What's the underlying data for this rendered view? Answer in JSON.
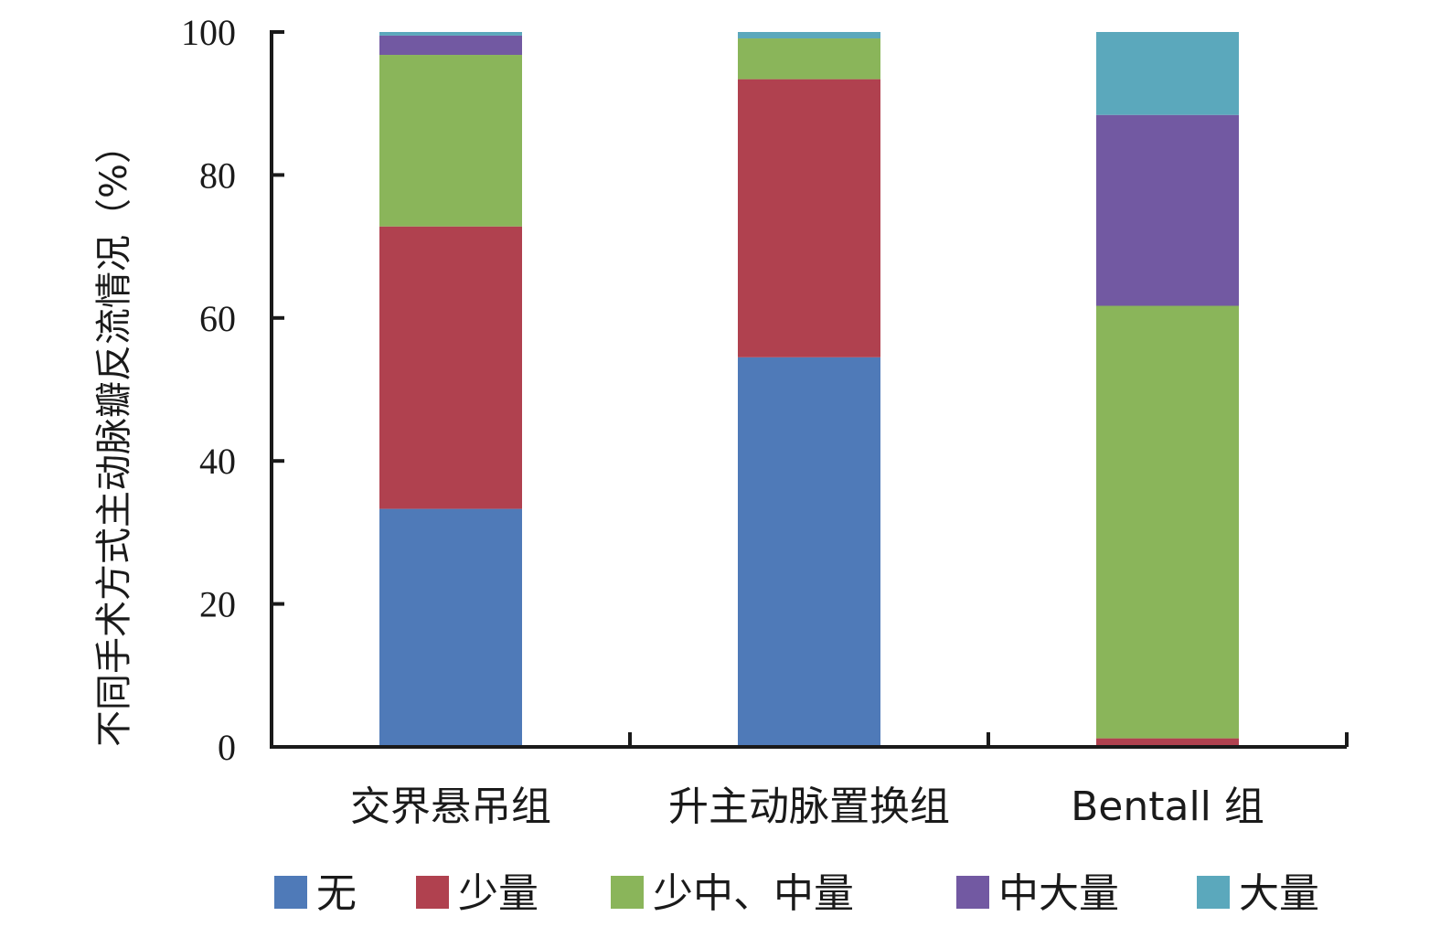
{
  "chart_data": {
    "type": "bar",
    "stacked": true,
    "title": "",
    "xlabel": "",
    "ylabel": "不同手术方式主动脉瓣反流情况（%）",
    "ylim": [
      0,
      100
    ],
    "yticks": [
      0,
      20,
      40,
      60,
      80,
      100
    ],
    "categories": [
      "交界悬吊组",
      "升主动脉置换组",
      "Bentall 组"
    ],
    "series": [
      {
        "name": "无",
        "color": "#4F7AB8",
        "values": [
          33.3,
          54.5,
          0
        ]
      },
      {
        "name": "少量",
        "color": "#B0414F",
        "values": [
          39.5,
          38.9,
          1.2
        ]
      },
      {
        "name": "少中、中量",
        "color": "#8AB55A",
        "values": [
          24.0,
          5.7,
          60.5
        ]
      },
      {
        "name": "中大量",
        "color": "#7259A2",
        "values": [
          2.7,
          0,
          26.7
        ]
      },
      {
        "name": "大量",
        "color": "#5BA8BC",
        "values": [
          0.5,
          0.9,
          11.6
        ]
      }
    ],
    "grid": false,
    "legend_position": "bottom"
  }
}
